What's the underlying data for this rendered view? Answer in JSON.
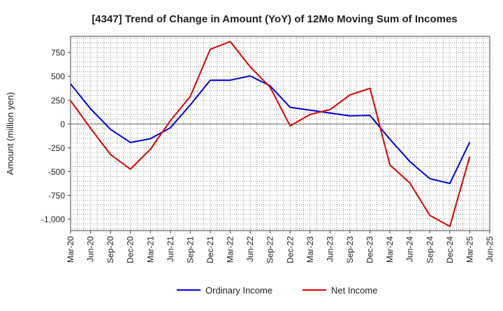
{
  "chart_data": {
    "type": "line",
    "title": "[4347]  Trend of Change in Amount (YoY) of 12Mo Moving Sum of Incomes",
    "xlabel": "",
    "ylabel": "Amount (million yen)",
    "ylim": [
      -1120,
      920
    ],
    "yticks": [
      -1000,
      -750,
      -500,
      -250,
      0,
      250,
      500,
      750
    ],
    "ytick_labels": [
      "-1,000",
      "-750",
      "-500",
      "-250",
      "0",
      "250",
      "500",
      "750"
    ],
    "categories": [
      "Mar-20",
      "Jun-20",
      "Sep-20",
      "Dec-20",
      "Mar-21",
      "Jun-21",
      "Sep-21",
      "Dec-21",
      "Mar-22",
      "Jun-22",
      "Sep-22",
      "Dec-22",
      "Mar-23",
      "Jun-23",
      "Sep-23",
      "Dec-23",
      "Mar-24",
      "Jun-24",
      "Sep-24",
      "Dec-24",
      "Mar-25",
      "Jun-25"
    ],
    "grid": true,
    "legend_position": "bottom-center",
    "series": [
      {
        "name": "Ordinary Income",
        "color": "#0000dd",
        "values": [
          420,
          160,
          -55,
          -195,
          -155,
          -40,
          200,
          460,
          460,
          505,
          400,
          175,
          145,
          115,
          85,
          90,
          -160,
          -395,
          -575,
          -625,
          -190,
          null
        ]
      },
      {
        "name": "Net Income",
        "color": "#dd0000",
        "values": [
          245,
          -45,
          -320,
          -475,
          -265,
          35,
          290,
          785,
          865,
          600,
          385,
          -20,
          100,
          150,
          305,
          375,
          -430,
          -620,
          -960,
          -1075,
          -340,
          null
        ]
      }
    ]
  }
}
